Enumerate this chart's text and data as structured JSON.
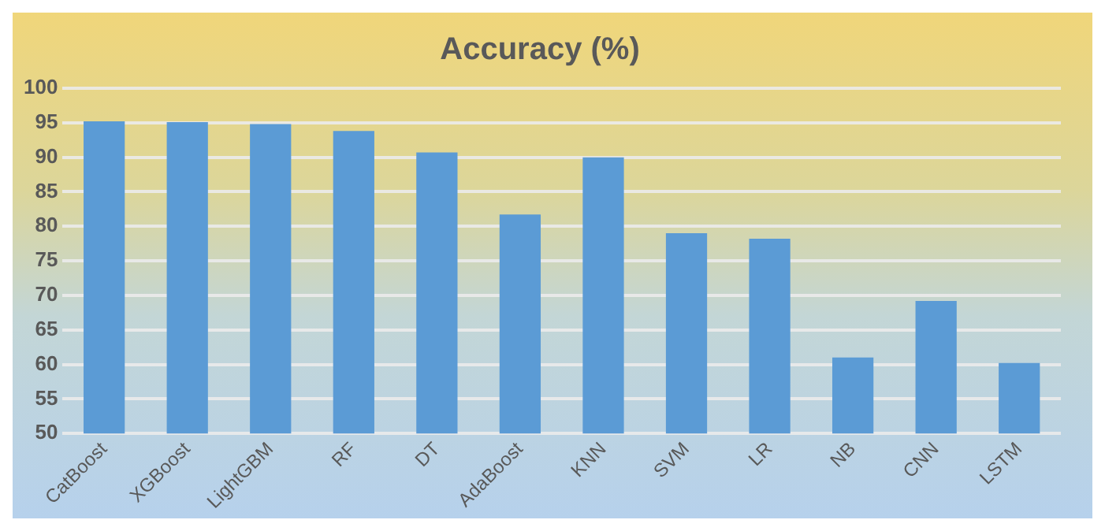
{
  "chart_data": {
    "type": "bar",
    "title": "Accuracy (%)",
    "categories": [
      "CatBoost",
      "XGBoost",
      "LightGBM",
      "RF",
      "DT",
      "AdaBoost",
      "KNN",
      "SVM",
      "LR",
      "NB",
      "CNN",
      "LSTM"
    ],
    "values": [
      95.2,
      95.1,
      94.8,
      93.8,
      90.7,
      81.7,
      90.0,
      79.0,
      78.2,
      61.0,
      69.2,
      60.2
    ],
    "color": "#5b9bd5",
    "ylim": [
      50,
      100
    ],
    "yticks": [
      50,
      55,
      60,
      65,
      70,
      75,
      80,
      85,
      90,
      95,
      100
    ],
    "grid": "y"
  }
}
